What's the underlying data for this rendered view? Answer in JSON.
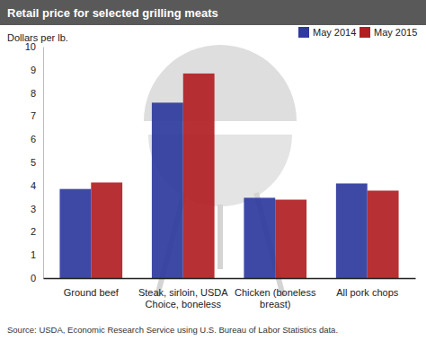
{
  "chart_data": {
    "type": "bar",
    "title": "Retail price for selected grilling meats",
    "y_label": "Dollars per lb.",
    "source": "Source: USDA, Economic Research Service using U.S. Bureau of Labor Statistics data.",
    "categories": [
      "Ground beef",
      "Steak, sirloin, USDA Choice, boneless",
      "Chicken (boneless breast)",
      "All pork chops"
    ],
    "series": [
      {
        "name": "May 2014",
        "color": "#2e3a9e",
        "values": [
          3.85,
          7.58,
          3.47,
          4.09
        ]
      },
      {
        "name": "May 2015",
        "color": "#b11e22",
        "values": [
          4.13,
          8.84,
          3.39,
          3.78
        ]
      }
    ],
    "ylim": [
      0,
      10
    ],
    "yticks": [
      0,
      1,
      2,
      3,
      4,
      5,
      6,
      7,
      8,
      9,
      10
    ],
    "grid": false,
    "legend": "top-right"
  }
}
